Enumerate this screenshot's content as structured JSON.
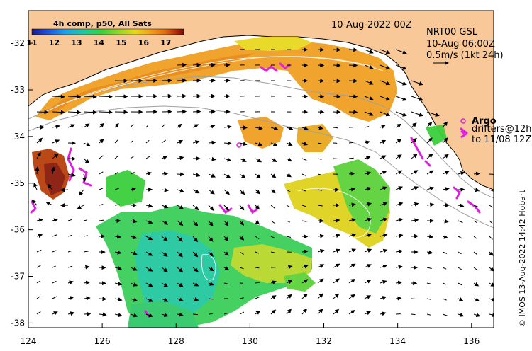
{
  "map": {
    "date_title": "10-Aug-2022 00Z",
    "product_name": "NRT00 GSL",
    "product_time": "10-Aug 06:00Z",
    "vector_scale": "0.5m/s (1kt 24h)",
    "credit": "© IMOS 13-Aug-2022 14:42 Hobart",
    "colorbar": {
      "title": "4h comp, p50, All Sats",
      "ticks": [
        "11",
        "12",
        "13",
        "14",
        "15",
        "16",
        "17"
      ],
      "range": [
        11,
        17.8
      ],
      "colors": [
        "#1a1a8c",
        "#1f4fd6",
        "#1fa0e8",
        "#20c8a0",
        "#3ccf3c",
        "#9ad62a",
        "#e6d81e",
        "#f2a01a",
        "#e06a12",
        "#b8320c",
        "#7a0a08"
      ]
    },
    "legend": {
      "argo_label": "Argo",
      "drifters_line1": "drifters@12h",
      "drifters_line2": "to 11/08 12Z"
    },
    "axes": {
      "lon_ticks": [
        "124",
        "126",
        "128",
        "130",
        "132",
        "134",
        "136"
      ],
      "lat_ticks": [
        "-32",
        "-33",
        "-34",
        "-35",
        "-36",
        "-37",
        "-38"
      ],
      "lon_range": [
        124,
        136.6
      ],
      "lat_range": [
        -38.1,
        -31.3
      ]
    },
    "colors": {
      "land": "#f8c898",
      "coast": "#000000",
      "bathymetry": "#a0a0a0",
      "argo": "#e020e0",
      "vector": "#000000"
    }
  }
}
